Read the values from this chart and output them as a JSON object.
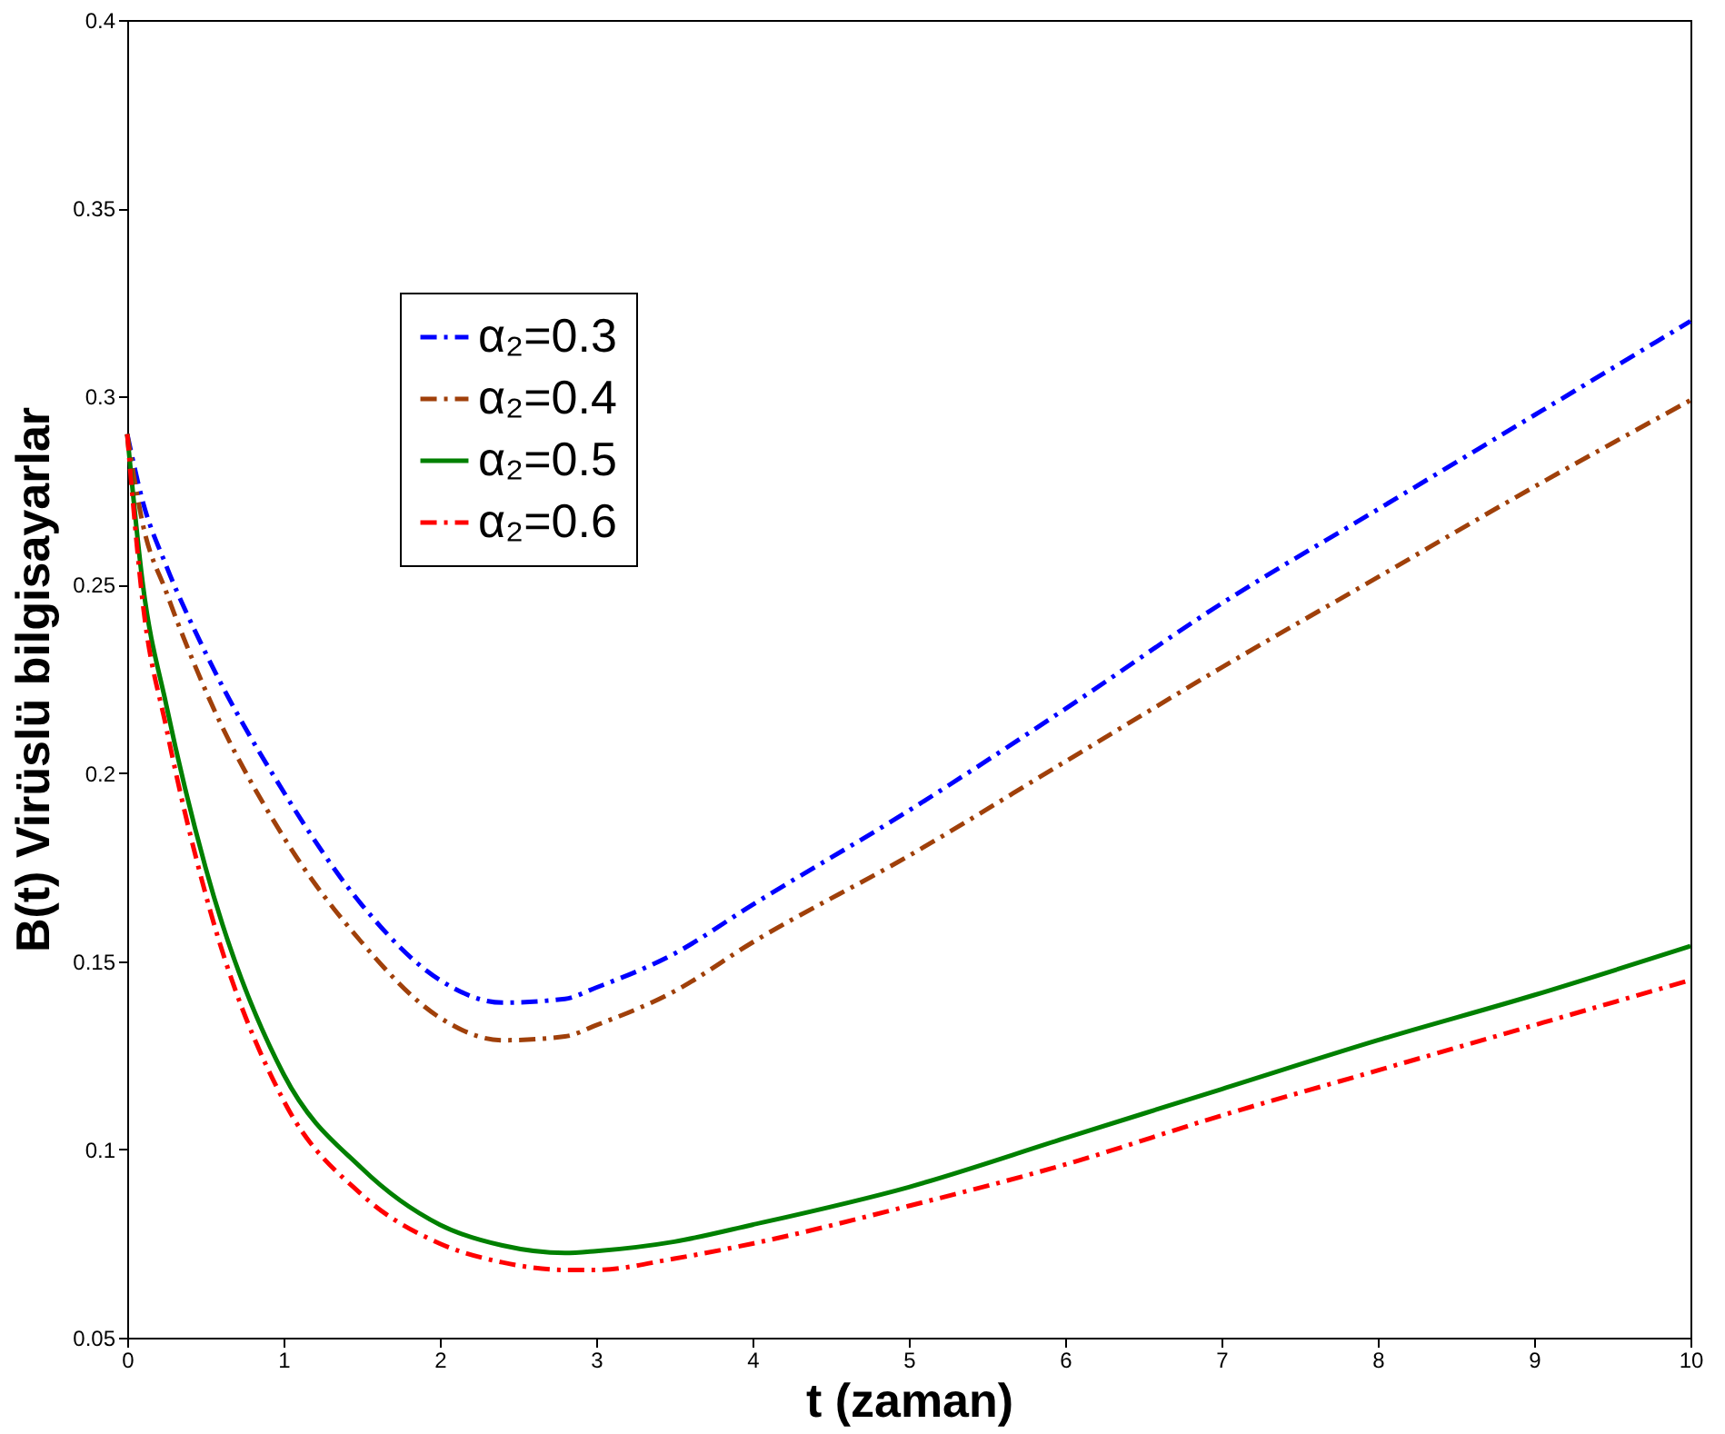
{
  "chart_data": {
    "type": "line",
    "xlabel": "t (zaman)",
    "ylabel": "B(t) Virüslü bilgisayarlar",
    "x": [
      0,
      0.1,
      0.25,
      0.5,
      1,
      1.5,
      2,
      2.4,
      2.8,
      3,
      3.5,
      4,
      5,
      6,
      7,
      8,
      9,
      10
    ],
    "series": [
      {
        "name": "α₂=0.3",
        "color": "#0000ff",
        "line_style": "dashdot",
        "values": [
          0.29,
          0.272,
          0.255,
          0.232,
          0.195,
          0.165,
          0.145,
          0.139,
          0.14,
          0.143,
          0.152,
          0.165,
          0.19,
          0.217,
          0.245,
          0.27,
          0.295,
          0.32
        ]
      },
      {
        "name": "α₂=0.4",
        "color": "#a0400a",
        "line_style": "dashdot",
        "values": [
          0.29,
          0.266,
          0.248,
          0.222,
          0.183,
          0.155,
          0.135,
          0.129,
          0.13,
          0.133,
          0.142,
          0.155,
          0.178,
          0.203,
          0.228,
          0.252,
          0.276,
          0.299
        ]
      },
      {
        "name": "α₂=0.5",
        "color": "#008000",
        "line_style": "solid",
        "values": [
          0.29,
          0.25,
          0.218,
          0.175,
          0.12,
          0.095,
          0.08,
          0.0745,
          0.0725,
          0.073,
          0.0755,
          0.08,
          0.09,
          0.103,
          0.116,
          0.129,
          0.141,
          0.154
        ]
      },
      {
        "name": "α₂=0.6",
        "color": "#ff0000",
        "line_style": "dashdot",
        "values": [
          0.29,
          0.245,
          0.212,
          0.168,
          0.113,
          0.088,
          0.075,
          0.07,
          0.068,
          0.068,
          0.071,
          0.075,
          0.085,
          0.096,
          0.109,
          0.121,
          0.133,
          0.145
        ]
      }
    ],
    "xlim": [
      0,
      10
    ],
    "xticks": [
      0,
      1,
      2,
      3,
      4,
      5,
      6,
      7,
      8,
      9,
      10
    ],
    "ylim": [
      0.05,
      0.4
    ],
    "yticks": [
      0.05,
      0.1,
      0.15,
      0.2,
      0.25,
      0.3,
      0.35,
      0.4
    ],
    "grid": false,
    "legend": "top left",
    "marker": "none"
  }
}
